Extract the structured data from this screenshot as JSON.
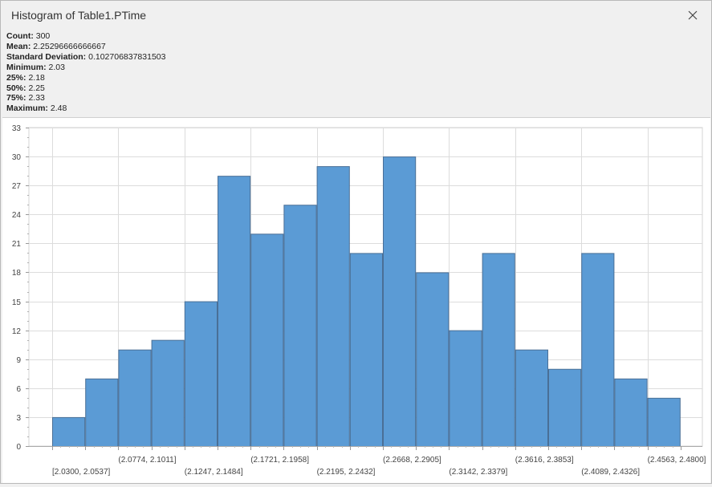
{
  "window": {
    "title": "Histogram of Table1.PTime"
  },
  "stats": [
    {
      "label": "Count:",
      "value": "300"
    },
    {
      "label": "Mean:",
      "value": "2.25296666666667"
    },
    {
      "label": "Standard Deviation:",
      "value": "0.102706837831503"
    },
    {
      "label": "Minimum:",
      "value": "2.03"
    },
    {
      "label": "25%:",
      "value": "2.18"
    },
    {
      "label": "50%:",
      "value": "2.25"
    },
    {
      "label": "75%:",
      "value": "2.33"
    },
    {
      "label": "Maximum:",
      "value": "2.48"
    }
  ],
  "chart_data": {
    "type": "bar",
    "categories": [
      "[2.0300, 2.0537]",
      "(2.0537, 2.0774]",
      "[2.0774, 2.1011]",
      "(2.1011, 2.1247]",
      "[2.1247, 2.1484]",
      "(2.1484, 2.1721]",
      "[2.1721, 2.1958]",
      "(2.1958, 2.2195]",
      "[2.2195, 2.2432]",
      "(2.2432, 2.2668]",
      "[2.2668, 2.2905]",
      "(2.2905, 2.3142]",
      "[2.3142, 2.3379]",
      "(2.3379, 2.3616]",
      "[2.3616, 2.3853]",
      "(2.3853, 2.4089]",
      "[2.4089, 2.4326]",
      "(2.4326, 2.4563]",
      "[2.4563, 2.4800]"
    ],
    "values": [
      3,
      7,
      10,
      11,
      15,
      28,
      22,
      25,
      29,
      20,
      30,
      18,
      12,
      20,
      10,
      8,
      20,
      7,
      5
    ],
    "visible_tick_labels": [
      {
        "index": 0,
        "text": "[2.0300, 2.0537]",
        "row": 2
      },
      {
        "index": 2,
        "text": "(2.0774, 2.1011]",
        "row": 1
      },
      {
        "index": 4,
        "text": "(2.1247, 2.1484]",
        "row": 2
      },
      {
        "index": 6,
        "text": "(2.1721, 2.1958]",
        "row": 1
      },
      {
        "index": 8,
        "text": "(2.2195, 2.2432]",
        "row": 2
      },
      {
        "index": 10,
        "text": "(2.2668, 2.2905]",
        "row": 1
      },
      {
        "index": 12,
        "text": "(2.3142, 2.3379]",
        "row": 2
      },
      {
        "index": 14,
        "text": "(2.3616, 2.3853]",
        "row": 1
      },
      {
        "index": 16,
        "text": "(2.4089, 2.4326]",
        "row": 2
      },
      {
        "index": 18,
        "text": "(2.4563, 2.4800]",
        "row": 1
      }
    ],
    "y_ticks": [
      0,
      3,
      6,
      9,
      12,
      15,
      18,
      21,
      24,
      27,
      30,
      33
    ],
    "ylim": [
      0,
      33
    ],
    "grid": true,
    "bar_color": "#5b9bd5",
    "bar_edge_color": "#4a6f96"
  }
}
